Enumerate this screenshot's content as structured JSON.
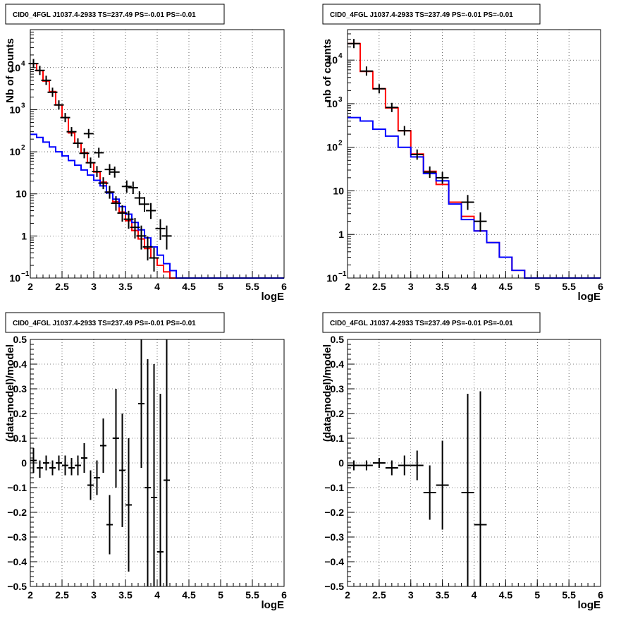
{
  "chart_data": [
    {
      "type": "line",
      "title": "CID0_4FGL J1037.4-2933 TS=237.49 PS=-0.01 PS=-0.01",
      "xlabel": "logE",
      "ylabel": "Nb of counts",
      "xlim": [
        2,
        6
      ],
      "ylim": [
        0.1,
        80000
      ],
      "yscale": "log",
      "grid": true,
      "x_ticks": [
        "2",
        "2.5",
        "3",
        "3.5",
        "4",
        "4.5",
        "5",
        "5.5",
        "6"
      ],
      "y_ticks": [
        {
          "value": 0.1,
          "label": "10",
          "sup": "−1"
        },
        {
          "value": 1,
          "label": "1",
          "sup": ""
        },
        {
          "value": 10,
          "label": "10",
          "sup": ""
        },
        {
          "value": 100,
          "label": "10",
          "sup": "2"
        },
        {
          "value": 1000,
          "label": "10",
          "sup": "3"
        },
        {
          "value": 10000,
          "label": "10",
          "sup": "4"
        }
      ],
      "series": [
        {
          "color": "#ff0000",
          "style": "hist",
          "x_start": 2,
          "bin_width": 0.1,
          "values": [
            12500,
            8500,
            4800,
            2700,
            1300,
            650,
            280,
            160,
            95,
            55,
            33,
            19,
            11,
            6.5,
            3.7,
            2.3,
            1.35,
            0.85,
            0.5,
            0.3,
            0.2,
            0.14,
            0.1,
            0.1,
            0.1,
            0.1,
            0.1,
            0.1,
            0.1,
            0.1,
            0.1,
            0.1,
            0.1,
            0.1,
            0.1,
            0.1,
            0.1,
            0.1,
            0.1,
            0.1
          ]
        },
        {
          "color": "#0000ff",
          "style": "hist",
          "x_start": 2,
          "bin_width": 0.1,
          "values": [
            260,
            220,
            170,
            130,
            100,
            80,
            62,
            48,
            37,
            28,
            21,
            15.5,
            10.5,
            7.5,
            5,
            3.3,
            2.1,
            1.4,
            0.9,
            0.55,
            0.35,
            0.22,
            0.15,
            0.1,
            0.1,
            0.1,
            0.1,
            0.1,
            0.1,
            0.1,
            0.1,
            0.1,
            0.1,
            0.1,
            0.1,
            0.1,
            0.1,
            0.1,
            0.1,
            0.1
          ]
        },
        {
          "color": "#000000",
          "style": "points",
          "points": [
            [
              2.05,
              12500,
              0
            ],
            [
              2.15,
              8600,
              0
            ],
            [
              2.25,
              5000,
              0
            ],
            [
              2.35,
              2600,
              0
            ],
            [
              2.45,
              1300,
              0
            ],
            [
              2.55,
              650,
              0
            ],
            [
              2.65,
              300,
              0
            ],
            [
              2.75,
              160,
              0
            ],
            [
              2.85,
              92,
              0
            ],
            [
              2.95,
              55,
              0
            ],
            [
              3.05,
              34,
              0
            ],
            [
              3.15,
              18,
              0
            ],
            [
              3.25,
              11,
              0
            ],
            [
              3.35,
              6,
              0
            ],
            [
              3.45,
              3.5,
              0
            ],
            [
              3.55,
              2.5,
              0
            ],
            [
              3.65,
              1.6,
              0
            ],
            [
              3.75,
              1.0,
              0
            ],
            [
              3.85,
              0.55,
              0
            ],
            [
              3.95,
              0.3,
              0
            ],
            [
              2.92,
              270,
              0
            ],
            [
              3.08,
              95,
              0
            ],
            [
              3.25,
              38,
              0
            ],
            [
              3.33,
              33,
              0
            ],
            [
              3.52,
              15,
              0
            ],
            [
              3.62,
              14,
              0
            ],
            [
              3.72,
              8,
              0
            ],
            [
              3.8,
              5.7,
              0
            ],
            [
              3.9,
              4,
              0
            ],
            [
              4.05,
              1.5,
              0
            ],
            [
              4.15,
              1,
              0
            ]
          ]
        }
      ]
    },
    {
      "type": "line",
      "title": "CID0_4FGL J1037.4-2933 TS=237.49 PS=-0.01 PS=-0.01",
      "xlabel": "logE",
      "ylabel": "nb of counts",
      "xlim": [
        2,
        6
      ],
      "ylim": [
        0.1,
        50000
      ],
      "yscale": "log",
      "grid": true,
      "x_ticks": [
        "2",
        "2.5",
        "3",
        "3.5",
        "4",
        "4.5",
        "5",
        "5.5",
        "6"
      ],
      "y_ticks": [
        {
          "value": 0.1,
          "label": "10",
          "sup": "−1"
        },
        {
          "value": 1,
          "label": "1",
          "sup": ""
        },
        {
          "value": 10,
          "label": "10",
          "sup": ""
        },
        {
          "value": 100,
          "label": "10",
          "sup": "2"
        },
        {
          "value": 1000,
          "label": "10",
          "sup": "3"
        },
        {
          "value": 10000,
          "label": "10",
          "sup": "4"
        }
      ],
      "series": [
        {
          "color": "#ff0000",
          "style": "hist",
          "x_start": 2,
          "bin_width": 0.2,
          "values": [
            24000,
            5500,
            2200,
            800,
            240,
            70,
            28,
            14,
            5.5,
            2.6,
            1.2,
            0.65,
            0.3,
            0.15,
            0.1,
            0.1,
            0.1,
            0.1,
            0.1,
            0.1
          ]
        },
        {
          "color": "#0000ff",
          "style": "hist",
          "x_start": 2,
          "bin_width": 0.2,
          "values": [
            480,
            400,
            260,
            180,
            100,
            60,
            25,
            17,
            5,
            2.2,
            1.2,
            0.65,
            0.3,
            0.15,
            0.1,
            0.1,
            0.1,
            0.1,
            0.1,
            0.1
          ]
        },
        {
          "color": "#000000",
          "style": "points",
          "points": [
            [
              2.1,
              24000,
              0.1
            ],
            [
              2.3,
              5600,
              0.1
            ],
            [
              2.5,
              2200,
              0.1
            ],
            [
              2.7,
              820,
              0.1
            ],
            [
              2.9,
              240,
              0.1
            ],
            [
              3.1,
              68,
              0.1
            ],
            [
              3.3,
              27,
              0.1
            ],
            [
              3.5,
              20,
              0.1
            ],
            [
              3.9,
              5.5,
              0.1
            ],
            [
              4.1,
              2,
              0.1
            ]
          ]
        }
      ]
    },
    {
      "type": "scatter",
      "title": "CID0_4FGL J1037.4-2933 TS=237.49 PS=-0.01 PS=-0.01",
      "xlabel": "logE",
      "ylabel": "(data-model)/model",
      "xlim": [
        2,
        6
      ],
      "ylim": [
        -0.5,
        0.5
      ],
      "grid": true,
      "x_ticks": [
        "2",
        "2.5",
        "3",
        "3.5",
        "4",
        "4.5",
        "5",
        "5.5",
        "6"
      ],
      "y_ticks": [
        "−0.5",
        "−0.4",
        "−0.3",
        "−0.2",
        "−0.1",
        "0",
        "0.1",
        "0.2",
        "0.3",
        "0.4",
        "0.5"
      ],
      "points": [
        [
          2.05,
          0.01,
          0.05,
          0.05
        ],
        [
          2.15,
          -0.02,
          0.03,
          0.04
        ],
        [
          2.25,
          0.0,
          0.03,
          0.03
        ],
        [
          2.35,
          -0.02,
          0.03,
          0.03
        ],
        [
          2.45,
          0.0,
          0.03,
          0.03
        ],
        [
          2.55,
          -0.01,
          0.04,
          0.04
        ],
        [
          2.65,
          -0.02,
          0.04,
          0.03
        ],
        [
          2.75,
          -0.01,
          0.04,
          0.04
        ],
        [
          2.85,
          0.02,
          0.06,
          0.06
        ],
        [
          2.95,
          -0.09,
          0.06,
          0.06
        ],
        [
          3.05,
          -0.06,
          0.07,
          0.07
        ],
        [
          3.15,
          0.07,
          0.11,
          0.11
        ],
        [
          3.25,
          -0.25,
          0.12,
          0.12
        ],
        [
          3.35,
          0.1,
          0.2,
          0.2
        ],
        [
          3.45,
          -0.03,
          0.23,
          0.23
        ],
        [
          3.55,
          -0.17,
          0.27,
          0.27
        ],
        [
          3.75,
          0.24,
          0.26,
          0.26
        ],
        [
          3.85,
          -0.1,
          0.52,
          0.52
        ],
        [
          3.95,
          -0.14,
          0.54,
          0.54
        ],
        [
          4.05,
          -0.36,
          0.64,
          0.64
        ],
        [
          4.15,
          -0.07,
          0.57,
          0.57
        ]
      ]
    },
    {
      "type": "scatter",
      "title": "CID0_4FGL J1037.4-2933 TS=237.49 PS=-0.01 PS=-0.01",
      "xlabel": "logE",
      "ylabel": "(data-model)/model",
      "xlim": [
        2,
        6
      ],
      "ylim": [
        -0.5,
        0.5
      ],
      "grid": true,
      "x_ticks": [
        "2",
        "2.5",
        "3",
        "3.5",
        "4",
        "4.5",
        "5",
        "5.5",
        "6"
      ],
      "y_ticks": [
        "−0.5",
        "−0.4",
        "−0.3",
        "−0.2",
        "−0.1",
        "0",
        "0.1",
        "0.2",
        "0.3",
        "0.4",
        "0.5"
      ],
      "points": [
        [
          2.1,
          -0.01,
          0.02,
          0.02
        ],
        [
          2.3,
          -0.01,
          0.02,
          0.02
        ],
        [
          2.5,
          0.0,
          0.02,
          0.02
        ],
        [
          2.7,
          -0.02,
          0.03,
          0.03
        ],
        [
          2.9,
          -0.01,
          0.04,
          0.04
        ],
        [
          3.1,
          -0.01,
          0.06,
          0.06
        ],
        [
          3.3,
          -0.12,
          0.11,
          0.11
        ],
        [
          3.5,
          -0.09,
          0.18,
          0.18
        ],
        [
          3.9,
          -0.12,
          0.4,
          0.4
        ],
        [
          4.1,
          -0.25,
          0.54,
          0.54
        ]
      ]
    }
  ]
}
